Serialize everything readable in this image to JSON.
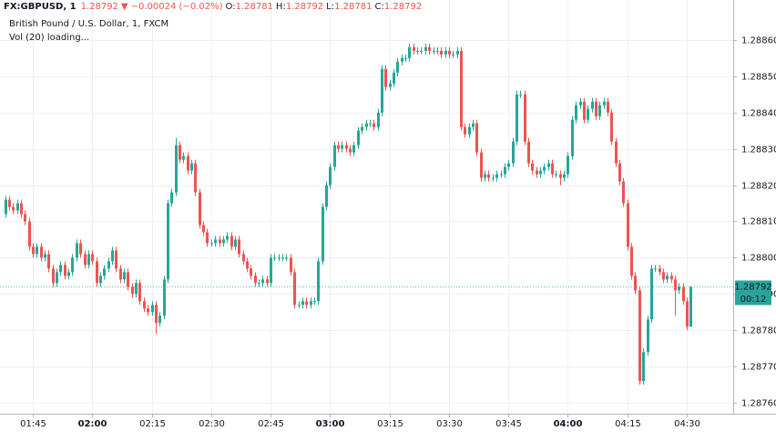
{
  "header": {
    "symbol": "FX:GBPUSD, 1",
    "last": "1.28792",
    "arrow": "▼",
    "change": "−0.00024 (−0.02%)",
    "o_label": "O:",
    "o": "1.28781",
    "h_label": "H:",
    "h": "1.28792",
    "l_label": "L:",
    "l": "1.28781",
    "c_label": "C:",
    "c": "1.28792"
  },
  "chart_data": {
    "type": "candlestick",
    "title": "British Pound / U.S. Dollar, 1, FXCM",
    "subtitle": "Vol (20) loading...",
    "up_color": "#26a69a",
    "down_color": "#ef5350",
    "grid": true,
    "ylim": [
      1.28757,
      1.28869
    ],
    "yticks": [
      {
        "value": 1.2876,
        "label": "1.28760"
      },
      {
        "value": 1.2877,
        "label": "1.28770"
      },
      {
        "value": 1.2878,
        "label": "1.28780"
      },
      {
        "value": 1.2879,
        "label": "1.28790"
      },
      {
        "value": 1.288,
        "label": "1.28800"
      },
      {
        "value": 1.2881,
        "label": "1.28810"
      },
      {
        "value": 1.2882,
        "label": "1.28820"
      },
      {
        "value": 1.2883,
        "label": "1.28830"
      },
      {
        "value": 1.2884,
        "label": "1.28840"
      },
      {
        "value": 1.2885,
        "label": "1.28850"
      },
      {
        "value": 1.2886,
        "label": "1.28860"
      }
    ],
    "price_line": {
      "value": 1.28792,
      "label": "1.28792",
      "countdown": "00:12"
    },
    "categories": [
      null,
      null,
      null,
      null,
      null,
      null,
      null,
      "01:45",
      null,
      null,
      null,
      null,
      null,
      null,
      null,
      null,
      null,
      null,
      null,
      null,
      null,
      null,
      "02:00",
      null,
      null,
      null,
      null,
      null,
      null,
      null,
      null,
      null,
      null,
      null,
      null,
      null,
      null,
      "02:15",
      null,
      null,
      null,
      null,
      null,
      null,
      null,
      null,
      null,
      null,
      null,
      null,
      null,
      null,
      "02:30",
      null,
      null,
      null,
      null,
      null,
      null,
      null,
      null,
      null,
      null,
      null,
      null,
      null,
      null,
      "02:45",
      null,
      null,
      null,
      null,
      null,
      null,
      null,
      null,
      null,
      null,
      null,
      null,
      null,
      null,
      "03:00",
      null,
      null,
      null,
      null,
      null,
      null,
      null,
      null,
      null,
      null,
      null,
      null,
      null,
      null,
      "03:15",
      null,
      null,
      null,
      null,
      null,
      null,
      null,
      null,
      null,
      null,
      null,
      null,
      null,
      null,
      "03:30",
      null,
      null,
      null,
      null,
      null,
      null,
      null,
      null,
      null,
      null,
      null,
      null,
      null,
      null,
      "03:45",
      null,
      null,
      null,
      null,
      null,
      null,
      null,
      null,
      null,
      null,
      null,
      null,
      null,
      null,
      "04:00",
      null,
      null,
      null,
      null,
      null,
      null,
      null,
      null,
      null,
      null,
      null,
      null,
      null,
      null,
      "04:15",
      null,
      null,
      null,
      null,
      null,
      null,
      null,
      null,
      null,
      null,
      null,
      null,
      null,
      null,
      "04:30",
      null
    ],
    "ohlc": [
      [
        1.28812,
        1.28817,
        1.28811,
        1.28816
      ],
      [
        1.28816,
        1.28817,
        1.28813,
        1.28814
      ],
      [
        1.28814,
        1.28815,
        1.28812,
        1.28813
      ],
      [
        1.28813,
        1.28816,
        1.28812,
        1.28815
      ],
      [
        1.28815,
        1.28816,
        1.28811,
        1.28812
      ],
      [
        1.28812,
        1.28813,
        1.28809,
        1.2881
      ],
      [
        1.2881,
        1.28811,
        1.28802,
        1.28803
      ],
      [
        1.28803,
        1.28804,
        1.288,
        1.28801
      ],
      [
        1.28801,
        1.28804,
        1.288,
        1.28803
      ],
      [
        1.28803,
        1.28804,
        1.28799,
        1.288
      ],
      [
        1.288,
        1.28802,
        1.28799,
        1.28801
      ],
      [
        1.28801,
        1.28802,
        1.28796,
        1.28797
      ],
      [
        1.28797,
        1.28798,
        1.28792,
        1.28793
      ],
      [
        1.28793,
        1.28797,
        1.28792,
        1.28796
      ],
      [
        1.28796,
        1.28799,
        1.28795,
        1.28798
      ],
      [
        1.28798,
        1.28799,
        1.28794,
        1.28795
      ],
      [
        1.28795,
        1.28797,
        1.28794,
        1.28796
      ],
      [
        1.28796,
        1.28801,
        1.28795,
        1.288
      ],
      [
        1.288,
        1.28805,
        1.28799,
        1.28804
      ],
      [
        1.28804,
        1.28805,
        1.288,
        1.28801
      ],
      [
        1.28801,
        1.28802,
        1.28797,
        1.28798
      ],
      [
        1.28798,
        1.28802,
        1.28797,
        1.28801
      ],
      [
        1.28801,
        1.28802,
        1.28798,
        1.28799
      ],
      [
        1.28799,
        1.288,
        1.28792,
        1.28793
      ],
      [
        1.28793,
        1.28796,
        1.28792,
        1.28795
      ],
      [
        1.28795,
        1.28798,
        1.28794,
        1.28797
      ],
      [
        1.28797,
        1.288,
        1.28796,
        1.28799
      ],
      [
        1.28799,
        1.28803,
        1.28798,
        1.28802
      ],
      [
        1.28802,
        1.28803,
        1.28796,
        1.28797
      ],
      [
        1.28797,
        1.28798,
        1.28793,
        1.28794
      ],
      [
        1.28794,
        1.28797,
        1.28793,
        1.28796
      ],
      [
        1.28796,
        1.28797,
        1.28791,
        1.28792
      ],
      [
        1.28792,
        1.28793,
        1.28789,
        1.2879
      ],
      [
        1.2879,
        1.28794,
        1.28789,
        1.28793
      ],
      [
        1.28793,
        1.28794,
        1.28787,
        1.28788
      ],
      [
        1.28788,
        1.28789,
        1.28785,
        1.28786
      ],
      [
        1.28786,
        1.28787,
        1.28784,
        1.28785
      ],
      [
        1.28785,
        1.28788,
        1.28784,
        1.28787
      ],
      [
        1.28787,
        1.28788,
        1.28779,
        1.28782
      ],
      [
        1.28782,
        1.28785,
        1.28781,
        1.28784
      ],
      [
        1.28784,
        1.28795,
        1.28783,
        1.28794
      ],
      [
        1.28794,
        1.28816,
        1.28793,
        1.28815
      ],
      [
        1.28815,
        1.28819,
        1.28814,
        1.28818
      ],
      [
        1.28818,
        1.28833,
        1.28817,
        1.28831
      ],
      [
        1.28831,
        1.28832,
        1.28826,
        1.28827
      ],
      [
        1.28827,
        1.28829,
        1.28826,
        1.28828
      ],
      [
        1.28828,
        1.28829,
        1.28823,
        1.28824
      ],
      [
        1.28824,
        1.28827,
        1.28823,
        1.28826
      ],
      [
        1.28826,
        1.28827,
        1.28817,
        1.28818
      ],
      [
        1.28818,
        1.28819,
        1.28808,
        1.28809
      ],
      [
        1.28809,
        1.2881,
        1.28806,
        1.28807
      ],
      [
        1.28807,
        1.28808,
        1.28803,
        1.28804
      ],
      [
        1.28804,
        1.28805,
        1.28803,
        1.28804
      ],
      [
        1.28804,
        1.28806,
        1.28803,
        1.28805
      ],
      [
        1.28805,
        1.28806,
        1.28803,
        1.28804
      ],
      [
        1.28804,
        1.28806,
        1.28803,
        1.28805
      ],
      [
        1.28805,
        1.28807,
        1.28804,
        1.28806
      ],
      [
        1.28806,
        1.28807,
        1.28802,
        1.28803
      ],
      [
        1.28803,
        1.28806,
        1.28802,
        1.28805
      ],
      [
        1.28805,
        1.28806,
        1.288,
        1.28801
      ],
      [
        1.28801,
        1.28802,
        1.28798,
        1.28799
      ],
      [
        1.28799,
        1.288,
        1.28796,
        1.28797
      ],
      [
        1.28797,
        1.28798,
        1.28794,
        1.28795
      ],
      [
        1.28795,
        1.28796,
        1.28792,
        1.28793
      ],
      [
        1.28793,
        1.28794,
        1.28792,
        1.28793
      ],
      [
        1.28793,
        1.28795,
        1.28792,
        1.28794
      ],
      [
        1.28794,
        1.28795,
        1.28792,
        1.28793
      ],
      [
        1.28793,
        1.28801,
        1.28792,
        1.288
      ],
      [
        1.288,
        1.28801,
        1.28799,
        1.288
      ],
      [
        1.288,
        1.28801,
        1.28799,
        1.288
      ],
      [
        1.288,
        1.28801,
        1.28799,
        1.288
      ],
      [
        1.288,
        1.28801,
        1.28799,
        1.288
      ],
      [
        1.288,
        1.28801,
        1.28795,
        1.28796
      ],
      [
        1.28796,
        1.28797,
        1.28786,
        1.28787
      ],
      [
        1.28787,
        1.28788,
        1.28786,
        1.28787
      ],
      [
        1.28787,
        1.28789,
        1.28786,
        1.28788
      ],
      [
        1.28788,
        1.28789,
        1.28786,
        1.28787
      ],
      [
        1.28787,
        1.28789,
        1.28786,
        1.28788
      ],
      [
        1.28788,
        1.28789,
        1.28787,
        1.28788
      ],
      [
        1.28788,
        1.288,
        1.28787,
        1.28799
      ],
      [
        1.28799,
        1.28815,
        1.28798,
        1.28814
      ],
      [
        1.28814,
        1.28821,
        1.28813,
        1.2882
      ],
      [
        1.2882,
        1.28826,
        1.28819,
        1.28825
      ],
      [
        1.28825,
        1.28832,
        1.28824,
        1.28831
      ],
      [
        1.28831,
        1.28832,
        1.28829,
        1.2883
      ],
      [
        1.2883,
        1.28832,
        1.28829,
        1.28831
      ],
      [
        1.28831,
        1.28832,
        1.28829,
        1.2883
      ],
      [
        1.2883,
        1.28831,
        1.28828,
        1.28829
      ],
      [
        1.28829,
        1.28832,
        1.28828,
        1.28831
      ],
      [
        1.28831,
        1.28836,
        1.2883,
        1.28835
      ],
      [
        1.28835,
        1.28837,
        1.28834,
        1.28836
      ],
      [
        1.28836,
        1.28838,
        1.28835,
        1.28837
      ],
      [
        1.28837,
        1.28838,
        1.28836,
        1.28837
      ],
      [
        1.28837,
        1.28838,
        1.28835,
        1.28836
      ],
      [
        1.28836,
        1.28841,
        1.28835,
        1.2884
      ],
      [
        1.2884,
        1.28853,
        1.28839,
        1.28852
      ],
      [
        1.28852,
        1.28853,
        1.28846,
        1.28847
      ],
      [
        1.28847,
        1.28849,
        1.28846,
        1.28848
      ],
      [
        1.28848,
        1.28852,
        1.28847,
        1.28851
      ],
      [
        1.28851,
        1.28855,
        1.2885,
        1.28854
      ],
      [
        1.28854,
        1.28856,
        1.28853,
        1.28855
      ],
      [
        1.28855,
        1.28856,
        1.28854,
        1.28855
      ],
      [
        1.28855,
        1.28859,
        1.28854,
        1.28858
      ],
      [
        1.28858,
        1.28859,
        1.28856,
        1.28857
      ],
      [
        1.28857,
        1.28858,
        1.28856,
        1.28857
      ],
      [
        1.28857,
        1.28858,
        1.28856,
        1.28857
      ],
      [
        1.28857,
        1.28859,
        1.28856,
        1.28858
      ],
      [
        1.28858,
        1.28859,
        1.28856,
        1.28857
      ],
      [
        1.28857,
        1.28858,
        1.28856,
        1.28857
      ],
      [
        1.28857,
        1.28858,
        1.28856,
        1.28857
      ],
      [
        1.28857,
        1.28858,
        1.28855,
        1.28856
      ],
      [
        1.28856,
        1.28858,
        1.28855,
        1.28857
      ],
      [
        1.28857,
        1.28858,
        1.28855,
        1.28856
      ],
      [
        1.28856,
        1.28857,
        1.28855,
        1.28856
      ],
      [
        1.28856,
        1.28858,
        1.28855,
        1.28857
      ],
      [
        1.28857,
        1.28858,
        1.28835,
        1.28836
      ],
      [
        1.28836,
        1.28837,
        1.28833,
        1.28834
      ],
      [
        1.28834,
        1.28837,
        1.28833,
        1.28836
      ],
      [
        1.28836,
        1.28838,
        1.28835,
        1.28837
      ],
      [
        1.28837,
        1.28838,
        1.28828,
        1.28829
      ],
      [
        1.28829,
        1.2883,
        1.28821,
        1.28822
      ],
      [
        1.28822,
        1.28824,
        1.28821,
        1.28823
      ],
      [
        1.28823,
        1.28824,
        1.28821,
        1.28822
      ],
      [
        1.28822,
        1.28823,
        1.28821,
        1.28822
      ],
      [
        1.28822,
        1.28824,
        1.28821,
        1.28823
      ],
      [
        1.28823,
        1.28824,
        1.28822,
        1.28823
      ],
      [
        1.28823,
        1.28826,
        1.28822,
        1.28825
      ],
      [
        1.28825,
        1.28827,
        1.28824,
        1.28826
      ],
      [
        1.28826,
        1.28833,
        1.28825,
        1.28832
      ],
      [
        1.28832,
        1.28846,
        1.28831,
        1.28845
      ],
      [
        1.28845,
        1.28846,
        1.28844,
        1.28845
      ],
      [
        1.28845,
        1.28846,
        1.28831,
        1.28832
      ],
      [
        1.28832,
        1.28833,
        1.28825,
        1.28826
      ],
      [
        1.28826,
        1.28827,
        1.28823,
        1.28824
      ],
      [
        1.28824,
        1.28825,
        1.28822,
        1.28823
      ],
      [
        1.28823,
        1.28825,
        1.28822,
        1.28824
      ],
      [
        1.28824,
        1.28826,
        1.28823,
        1.28825
      ],
      [
        1.28825,
        1.28827,
        1.28824,
        1.28826
      ],
      [
        1.28826,
        1.28827,
        1.28822,
        1.28823
      ],
      [
        1.28823,
        1.28824,
        1.28822,
        1.28823
      ],
      [
        1.28823,
        1.28824,
        1.2882,
        1.28822
      ],
      [
        1.28822,
        1.28824,
        1.28821,
        1.28823
      ],
      [
        1.28823,
        1.28829,
        1.28822,
        1.28828
      ],
      [
        1.28828,
        1.28839,
        1.28827,
        1.28838
      ],
      [
        1.28838,
        1.28843,
        1.28837,
        1.28842
      ],
      [
        1.28842,
        1.28844,
        1.28841,
        1.28843
      ],
      [
        1.28843,
        1.28844,
        1.28837,
        1.28838
      ],
      [
        1.28838,
        1.28842,
        1.28837,
        1.28841
      ],
      [
        1.28841,
        1.28844,
        1.2884,
        1.28843
      ],
      [
        1.28843,
        1.28844,
        1.28838,
        1.28839
      ],
      [
        1.28839,
        1.28843,
        1.28838,
        1.28842
      ],
      [
        1.28842,
        1.28844,
        1.28841,
        1.28843
      ],
      [
        1.28843,
        1.28844,
        1.28839,
        1.2884
      ],
      [
        1.2884,
        1.28841,
        1.28831,
        1.28832
      ],
      [
        1.28832,
        1.28833,
        1.28825,
        1.28826
      ],
      [
        1.28826,
        1.28827,
        1.2882,
        1.28821
      ],
      [
        1.28821,
        1.28822,
        1.28814,
        1.28815
      ],
      [
        1.28815,
        1.28816,
        1.28802,
        1.28803
      ],
      [
        1.28803,
        1.28804,
        1.28794,
        1.28795
      ],
      [
        1.28795,
        1.28796,
        1.2879,
        1.28791
      ],
      [
        1.28791,
        1.28792,
        1.28765,
        1.28766
      ],
      [
        1.28766,
        1.28775,
        1.28765,
        1.28774
      ],
      [
        1.28774,
        1.28784,
        1.28773,
        1.28783
      ],
      [
        1.28783,
        1.28798,
        1.28782,
        1.28797
      ],
      [
        1.28797,
        1.28798,
        1.28796,
        1.28797
      ],
      [
        1.28797,
        1.28798,
        1.28795,
        1.28796
      ],
      [
        1.28796,
        1.28797,
        1.28793,
        1.28794
      ],
      [
        1.28794,
        1.28796,
        1.28793,
        1.28795
      ],
      [
        1.28795,
        1.28796,
        1.28793,
        1.28794
      ],
      [
        1.28794,
        1.28795,
        1.28784,
        1.28791
      ],
      [
        1.28791,
        1.28793,
        1.2879,
        1.28792
      ],
      [
        1.28792,
        1.28793,
        1.28787,
        1.28788
      ],
      [
        1.28788,
        1.28789,
        1.2878,
        1.28781
      ],
      [
        1.28781,
        1.28792,
        1.28781,
        1.28792
      ]
    ]
  }
}
